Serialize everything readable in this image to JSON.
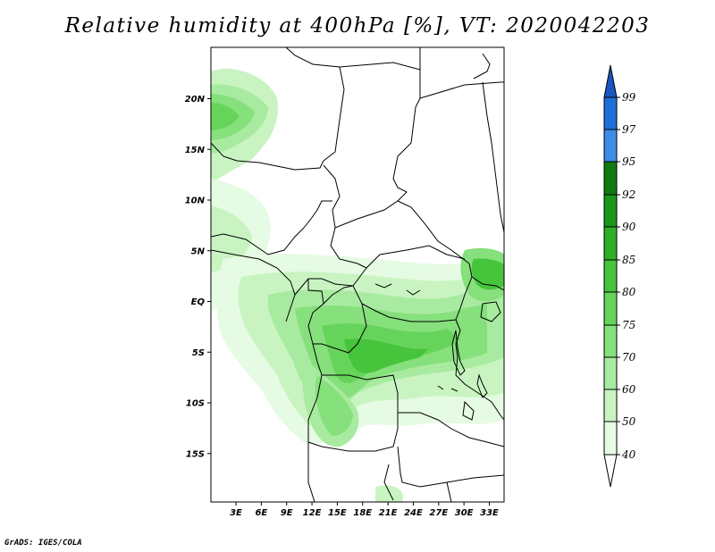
{
  "title": "Relative humidity at 400hPa [%], VT: 2020042203",
  "credit": "GrADS: IGES/COLA",
  "map": {
    "lat_labels": [
      "20N",
      "15N",
      "10N",
      "5N",
      "EQ",
      "5S",
      "10S",
      "15S"
    ],
    "lat_values": [
      20,
      15,
      10,
      5,
      0,
      -5,
      -10,
      -15
    ],
    "lon_labels": [
      "3E",
      "6E",
      "9E",
      "12E",
      "15E",
      "18E",
      "21E",
      "24E",
      "27E",
      "30E",
      "33E"
    ],
    "lon_values": [
      3,
      6,
      9,
      12,
      15,
      18,
      21,
      24,
      27,
      30,
      33
    ]
  },
  "colorbar": {
    "labels": [
      "40",
      "50",
      "60",
      "70",
      "75",
      "80",
      "85",
      "90",
      "92",
      "95",
      "97",
      "99"
    ],
    "colors": [
      "#ffffff",
      "#e6fbe3",
      "#c9f4c2",
      "#a8eba0",
      "#86e07c",
      "#66d45b",
      "#46c43b",
      "#2eaf25",
      "#1a961a",
      "#0e7a10",
      "#3d8ce8",
      "#1e6fd9",
      "#1a55c0"
    ]
  }
}
